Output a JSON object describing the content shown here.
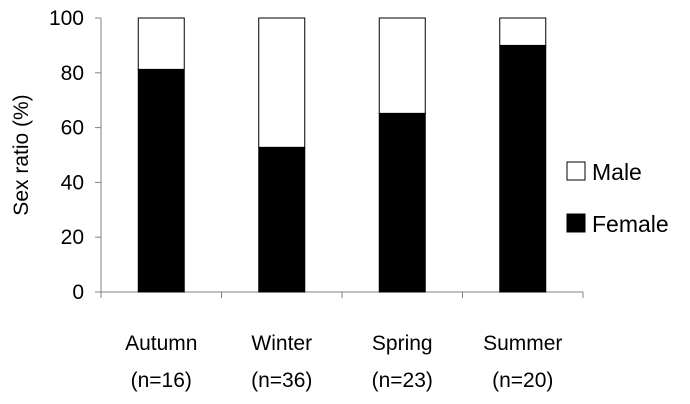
{
  "chart_data": {
    "type": "bar",
    "stacked": true,
    "categories": [
      "Autumn",
      "Winter",
      "Spring",
      "Summer"
    ],
    "category_sublabels": [
      "(n=16)",
      "(n=36)",
      "(n=23)",
      "(n=20)"
    ],
    "series": [
      {
        "name": "Female",
        "values": [
          81.25,
          52.8,
          65.2,
          90.0
        ],
        "color": "#000000"
      },
      {
        "name": "Male",
        "values": [
          18.75,
          47.2,
          34.8,
          10.0
        ],
        "color": "#ffffff"
      }
    ],
    "ylabel": "Sex ratio (%)",
    "xlabel": "",
    "ylim": [
      0,
      100
    ],
    "yticks": [
      "0",
      "20",
      "40",
      "60",
      "80",
      "100"
    ],
    "grid": false,
    "legend": {
      "position": "right",
      "entries": [
        "Male",
        "Female"
      ]
    }
  }
}
